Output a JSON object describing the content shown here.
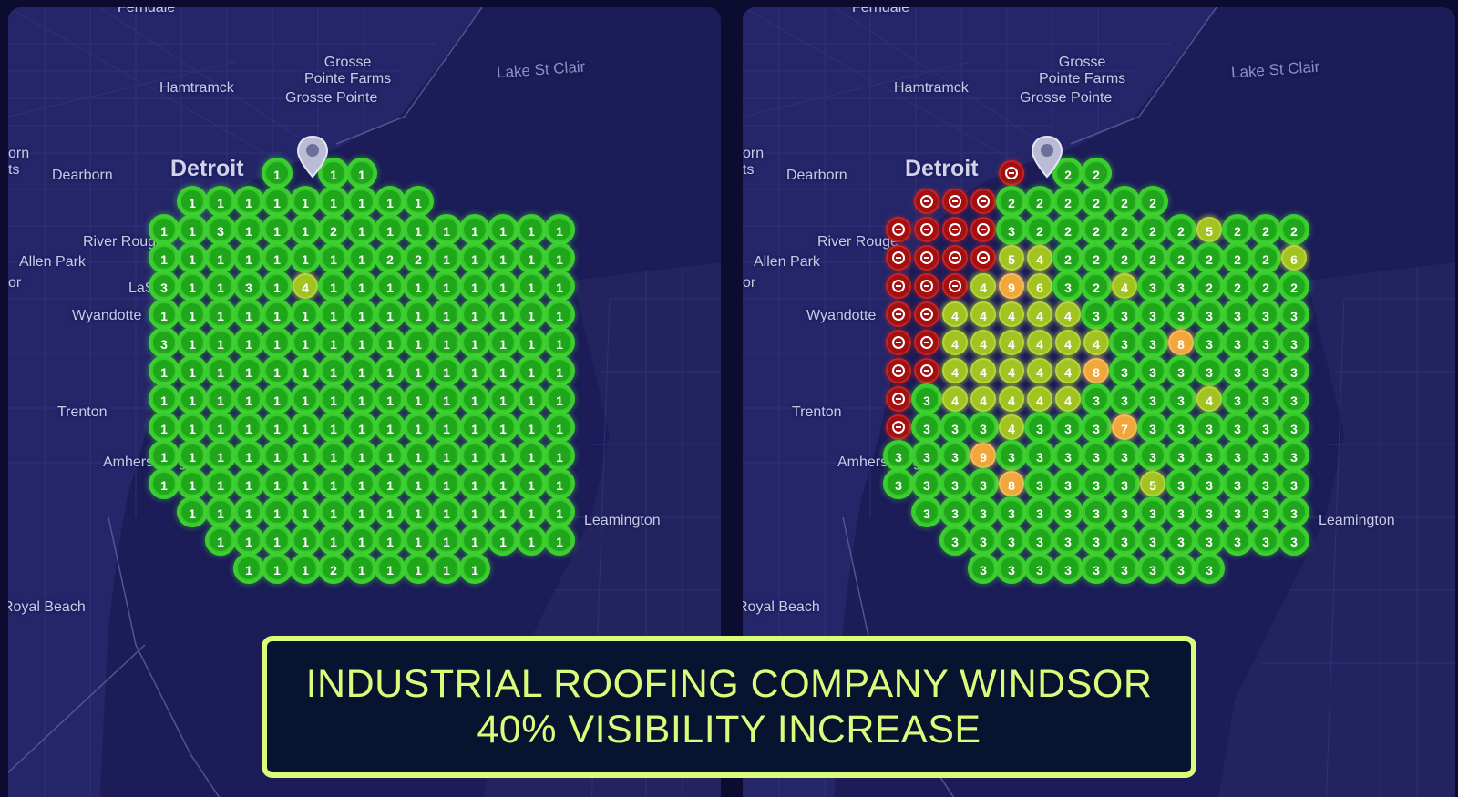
{
  "banner": {
    "line1": "INDUSTRIAL ROOFING COMPANY WINDSOR",
    "line2": "40%  VISIBILITY INCREASE"
  },
  "map_labels": {
    "ferndale": "Ferndale",
    "grosse_pointe_farms": "Grosse\nPointe Farms",
    "hamtramck": "Hamtramck",
    "grosse_pointe": "Grosse Pointe",
    "lake_st_clair": "Lake St Clair",
    "detroit": "Detroit",
    "dearborn": "Dearborn",
    "river_rouge": "River Rouge",
    "allen_park": "Allen Park",
    "wyandotte": "Wyandotte",
    "trenton": "Trenton",
    "amherstburg": "Amherstburg",
    "leamington": "Leamington",
    "royal_beach": "Royal Beach",
    "edge_a": "orn",
    "edge_b": "ts",
    "lasalle": "LaSalle",
    "edge_c": "or"
  },
  "icons": {
    "pin": "map-pin-icon",
    "no_rank": "minus-circle-icon"
  },
  "colors": {
    "rank_1_3": "#1fa61a",
    "rank_4_6": "#a3c322",
    "rank_7_10": "#f2a73b",
    "not_ranked": "#a40f0f",
    "banner_accent": "#dbfb7a"
  },
  "grids": {
    "before": {
      "rows": [
        [
          "",
          "",
          "",
          "",
          "1",
          "",
          "1",
          "1",
          "",
          "",
          "",
          "",
          "",
          "",
          "",
          ""
        ],
        [
          "",
          "1",
          "1",
          "1",
          "1",
          "1",
          "1",
          "1",
          "1",
          "1",
          "",
          "",
          "",
          "",
          "",
          ""
        ],
        [
          "1",
          "1",
          "3",
          "1",
          "1",
          "1",
          "2",
          "1",
          "1",
          "1",
          "1",
          "1",
          "1",
          "1",
          "1",
          ""
        ],
        [
          "1",
          "1",
          "1",
          "1",
          "1",
          "1",
          "1",
          "1",
          "2",
          "2",
          "1",
          "1",
          "1",
          "1",
          "1",
          ""
        ],
        [
          "3",
          "1",
          "1",
          "3",
          "1",
          "4",
          "1",
          "1",
          "1",
          "1",
          "1",
          "1",
          "1",
          "1",
          "1",
          ""
        ],
        [
          "1",
          "1",
          "1",
          "1",
          "1",
          "1",
          "1",
          "1",
          "1",
          "1",
          "1",
          "1",
          "1",
          "1",
          "1",
          ""
        ],
        [
          "3",
          "1",
          "1",
          "1",
          "1",
          "1",
          "1",
          "1",
          "1",
          "1",
          "1",
          "1",
          "1",
          "1",
          "1",
          ""
        ],
        [
          "1",
          "1",
          "1",
          "1",
          "1",
          "1",
          "1",
          "1",
          "1",
          "1",
          "1",
          "1",
          "1",
          "1",
          "1",
          ""
        ],
        [
          "1",
          "1",
          "1",
          "1",
          "1",
          "1",
          "1",
          "1",
          "1",
          "1",
          "1",
          "1",
          "1",
          "1",
          "1",
          ""
        ],
        [
          "1",
          "1",
          "1",
          "1",
          "1",
          "1",
          "1",
          "1",
          "1",
          "1",
          "1",
          "1",
          "1",
          "1",
          "1",
          ""
        ],
        [
          "1",
          "1",
          "1",
          "1",
          "1",
          "1",
          "1",
          "1",
          "1",
          "1",
          "1",
          "1",
          "1",
          "1",
          "1",
          ""
        ],
        [
          "1",
          "1",
          "1",
          "1",
          "1",
          "1",
          "1",
          "1",
          "1",
          "1",
          "1",
          "1",
          "1",
          "1",
          "1",
          ""
        ],
        [
          "",
          "1",
          "1",
          "1",
          "1",
          "1",
          "1",
          "1",
          "1",
          "1",
          "1",
          "1",
          "1",
          "1",
          "1",
          ""
        ],
        [
          "",
          "",
          "1",
          "1",
          "1",
          "1",
          "1",
          "1",
          "1",
          "1",
          "1",
          "1",
          "1",
          "1",
          "1",
          ""
        ],
        [
          "",
          "",
          "",
          "1",
          "1",
          "1",
          "2",
          "1",
          "1",
          "1",
          "1",
          "1",
          "",
          "",
          "",
          ""
        ]
      ],
      "pin_col": 5
    },
    "after": {
      "rows": [
        [
          "",
          "",
          "",
          "",
          "-",
          "",
          "2",
          "2",
          "",
          "",
          "",
          "",
          "",
          "",
          "",
          ""
        ],
        [
          "",
          "-",
          "-",
          "-",
          "2",
          "2",
          "2",
          "2",
          "2",
          "2",
          "",
          "",
          "",
          "",
          "",
          ""
        ],
        [
          "-",
          "-",
          "-",
          "-",
          "3",
          "2",
          "2",
          "2",
          "2",
          "2",
          "2",
          "5",
          "2",
          "2",
          "2",
          ""
        ],
        [
          "-",
          "-",
          "-",
          "-",
          "5",
          "4",
          "2",
          "2",
          "2",
          "2",
          "2",
          "2",
          "2",
          "2",
          "6",
          ""
        ],
        [
          "-",
          "-",
          "-",
          "4",
          "9",
          "6",
          "3",
          "2",
          "4",
          "3",
          "3",
          "2",
          "2",
          "2",
          "2",
          ""
        ],
        [
          "-",
          "-",
          "4",
          "4",
          "4",
          "4",
          "4",
          "3",
          "3",
          "3",
          "3",
          "3",
          "3",
          "3",
          "3",
          ""
        ],
        [
          "-",
          "-",
          "4",
          "4",
          "4",
          "4",
          "4",
          "4",
          "3",
          "3",
          "8",
          "3",
          "3",
          "3",
          "3",
          ""
        ],
        [
          "-",
          "-",
          "4",
          "4",
          "4",
          "4",
          "4",
          "8",
          "3",
          "3",
          "3",
          "3",
          "3",
          "3",
          "3",
          ""
        ],
        [
          "-",
          "3",
          "4",
          "4",
          "4",
          "4",
          "4",
          "3",
          "3",
          "3",
          "3",
          "4",
          "3",
          "3",
          "3",
          ""
        ],
        [
          "-",
          "3",
          "3",
          "3",
          "4",
          "3",
          "3",
          "3",
          "7",
          "3",
          "3",
          "3",
          "3",
          "3",
          "3",
          ""
        ],
        [
          "3",
          "3",
          "3",
          "9",
          "3",
          "3",
          "3",
          "3",
          "3",
          "3",
          "3",
          "3",
          "3",
          "3",
          "3",
          ""
        ],
        [
          "3",
          "3",
          "3",
          "3",
          "8",
          "3",
          "3",
          "3",
          "3",
          "5",
          "3",
          "3",
          "3",
          "3",
          "3",
          ""
        ],
        [
          "",
          "3",
          "3",
          "3",
          "3",
          "3",
          "3",
          "3",
          "3",
          "3",
          "3",
          "3",
          "3",
          "3",
          "3",
          ""
        ],
        [
          "",
          "",
          "3",
          "3",
          "3",
          "3",
          "3",
          "3",
          "3",
          "3",
          "3",
          "3",
          "3",
          "3",
          "3",
          ""
        ],
        [
          "",
          "",
          "",
          "3",
          "3",
          "3",
          "3",
          "3",
          "3",
          "3",
          "3",
          "3",
          "",
          "",
          "",
          ""
        ]
      ],
      "pin_col": 5
    }
  }
}
